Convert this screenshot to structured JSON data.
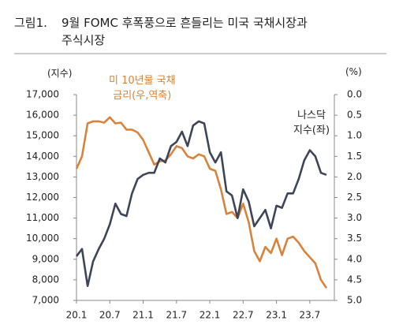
{
  "chart_data": {
    "type": "line",
    "figure_label": "그림1.",
    "title": "9월 FOMC 후폭풍으로 흔들리는 미국 국채시장과\n주식시장",
    "y_label": "(지수)",
    "y2_label": "(%)",
    "x": [
      "20.1",
      "20.2",
      "20.3",
      "20.4",
      "20.5",
      "20.6",
      "20.7",
      "20.8",
      "20.9",
      "20.10",
      "20.11",
      "20.12",
      "21.1",
      "21.2",
      "21.3",
      "21.4",
      "21.5",
      "21.6",
      "21.7",
      "21.8",
      "21.9",
      "21.10",
      "21.11",
      "21.12",
      "22.1",
      "22.2",
      "22.3",
      "22.4",
      "22.5",
      "22.6",
      "22.7",
      "22.8",
      "22.9",
      "22.10",
      "22.11",
      "22.12",
      "23.1",
      "23.2",
      "23.3",
      "23.4",
      "23.5",
      "23.6",
      "23.7",
      "23.8",
      "23.9",
      "23.10"
    ],
    "xticks": [
      "20.1",
      "20.7",
      "21.1",
      "21.7",
      "22.1",
      "22.7",
      "23.1",
      "23.7"
    ],
    "ylim": [
      7000,
      17000
    ],
    "yticks": [
      {
        "value": 7000,
        "label": "7,000"
      },
      {
        "value": 8000,
        "label": "8,000"
      },
      {
        "value": 9000,
        "label": "9,000"
      },
      {
        "value": 10000,
        "label": "10,000"
      },
      {
        "value": 11000,
        "label": "11,000"
      },
      {
        "value": 12000,
        "label": "12,000"
      },
      {
        "value": 13000,
        "label": "13,000"
      },
      {
        "value": 14000,
        "label": "14,000"
      },
      {
        "value": 15000,
        "label": "15,000"
      },
      {
        "value": 16000,
        "label": "16,000"
      },
      {
        "value": 17000,
        "label": "17,000"
      }
    ],
    "y2lim": [
      0,
      5
    ],
    "y2_inverted": true,
    "y2ticks": [
      {
        "value": 0,
        "label": "0.0"
      },
      0.5,
      {
        "value": 1,
        "label": "1.0"
      },
      1.5,
      {
        "value": 2,
        "label": "2.0"
      },
      2.5,
      {
        "value": 3,
        "label": "3.0"
      },
      3.5,
      {
        "value": 4,
        "label": "4.0"
      },
      4.5,
      {
        "value": 5,
        "label": "5.0"
      }
    ],
    "series": [
      {
        "name": "나스닥\n지수(좌)",
        "color": "#3e4558",
        "values": [
          9150,
          9500,
          7700,
          8900,
          9500,
          10000,
          10700,
          11700,
          11200,
          11100,
          12200,
          12900,
          13100,
          13200,
          13200,
          13900,
          13700,
          14500,
          14700,
          15200,
          14500,
          15500,
          15700,
          15600,
          14200,
          13700,
          14200,
          12300,
          12100,
          11000,
          12400,
          11800,
          10600,
          11000,
          11400,
          10500,
          11600,
          11500,
          12200,
          12200,
          12900,
          13800,
          14300,
          14000,
          13200,
          13100
        ]
      },
      {
        "name": "미 10년물 국채\n금리(우,역축)",
        "color": "#d9823b",
        "axis": "y2",
        "values": [
          1.8,
          1.5,
          0.7,
          0.65,
          0.65,
          0.68,
          0.55,
          0.7,
          0.68,
          0.85,
          0.85,
          0.92,
          1.1,
          1.4,
          1.7,
          1.62,
          1.6,
          1.45,
          1.25,
          1.3,
          1.5,
          1.55,
          1.45,
          1.5,
          1.8,
          1.85,
          2.3,
          2.9,
          2.85,
          3.0,
          2.65,
          3.1,
          3.8,
          4.05,
          3.7,
          3.85,
          3.5,
          3.9,
          3.5,
          3.45,
          3.6,
          3.8,
          3.95,
          4.1,
          4.5,
          4.7
        ]
      }
    ]
  }
}
